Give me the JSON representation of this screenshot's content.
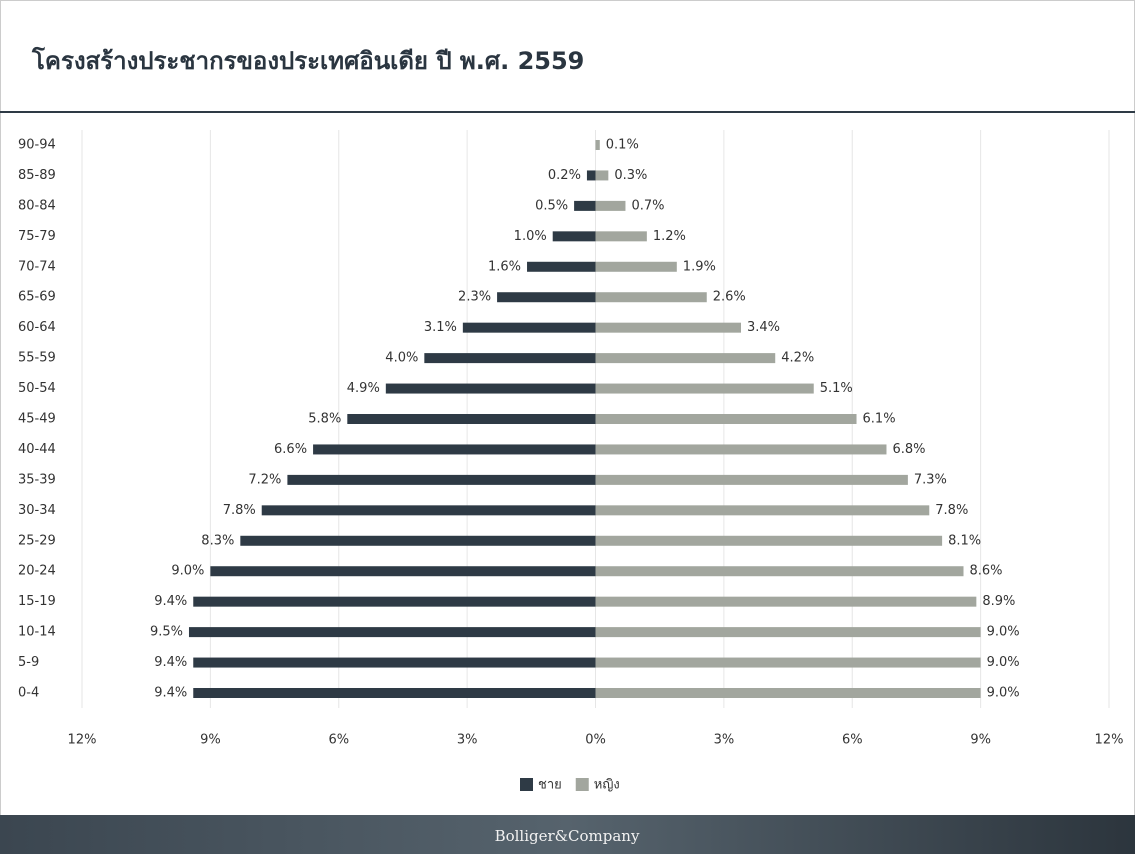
{
  "chart_data": {
    "type": "pyramid",
    "title": "โครงสร้างประชากรของประเทศอินเดีย ปี พ.ศ. 2559",
    "categories": [
      "90-94",
      "85-89",
      "80-84",
      "75-79",
      "70-74",
      "65-69",
      "60-64",
      "55-59",
      "50-54",
      "45-49",
      "40-44",
      "35-39",
      "30-34",
      "25-29",
      "20-24",
      "15-19",
      "10-14",
      "5-9",
      "0-4"
    ],
    "series": [
      {
        "name": "ชาย",
        "color": "#2e3a45",
        "values": [
          null,
          -0.2,
          -0.5,
          -1.0,
          -1.6,
          -2.3,
          -3.1,
          -4.0,
          -4.9,
          -5.8,
          -6.6,
          -7.2,
          -7.8,
          -8.3,
          -9.0,
          -9.4,
          -9.5,
          -9.4,
          -9.4
        ],
        "value_labels": [
          null,
          "0.2%",
          "0.5%",
          "1.0%",
          "1.6%",
          "2.3%",
          "3.1%",
          "4.0%",
          "4.9%",
          "5.8%",
          "6.6%",
          "7.2%",
          "7.8%",
          "8.3%",
          "9.0%",
          "9.4%",
          "9.5%",
          "9.4%",
          "9.4%"
        ]
      },
      {
        "name": "หญิง",
        "color": "#a2a69e",
        "values": [
          0.1,
          0.3,
          0.7,
          1.2,
          1.9,
          2.6,
          3.4,
          4.2,
          5.1,
          6.1,
          6.8,
          7.3,
          7.8,
          8.1,
          8.6,
          8.9,
          9.0,
          9.0,
          9.0
        ],
        "value_labels": [
          "0.1%",
          "0.3%",
          "0.7%",
          "1.2%",
          "1.9%",
          "2.6%",
          "3.4%",
          "4.2%",
          "5.1%",
          "6.1%",
          "6.8%",
          "7.3%",
          "7.8%",
          "8.1%",
          "8.6%",
          "8.9%",
          "9.0%",
          "9.0%",
          "9.0%"
        ]
      }
    ],
    "xlim": [
      -12,
      12
    ],
    "xticks": [
      {
        "value": -12,
        "label": "12%"
      },
      {
        "value": -9,
        "label": "9%"
      },
      {
        "value": -6,
        "label": "6%"
      },
      {
        "value": -3,
        "label": "3%"
      },
      {
        "value": 0,
        "label": "0%"
      },
      {
        "value": 3,
        "label": "3%"
      },
      {
        "value": 6,
        "label": "6%"
      },
      {
        "value": 9,
        "label": "9%"
      },
      {
        "value": 12,
        "label": "12%"
      }
    ],
    "grid": true,
    "legend": "bottom"
  },
  "footer": "Bolliger&Company"
}
